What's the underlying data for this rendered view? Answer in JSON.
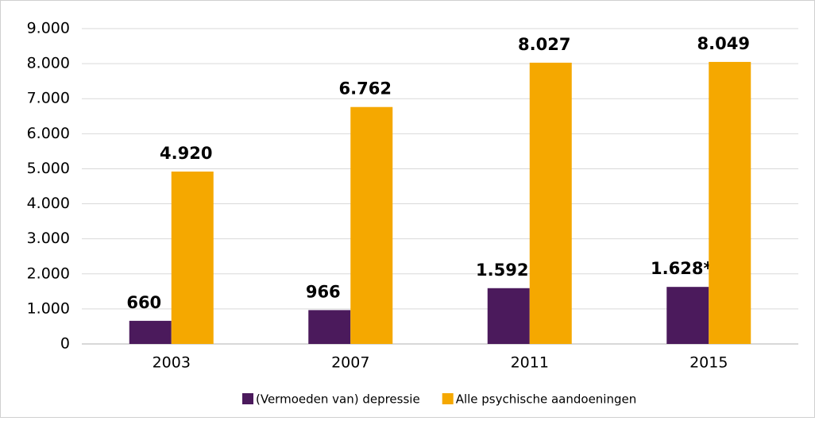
{
  "chart_data": {
    "type": "bar",
    "categories": [
      "2003",
      "2007",
      "2011",
      "2015"
    ],
    "series": [
      {
        "name": "(Vermoeden van) depressie",
        "color": "#4b1a5c",
        "values": [
          660,
          966,
          1592,
          1628
        ],
        "value_labels": [
          "660",
          "966",
          "1.592",
          "1.628*"
        ]
      },
      {
        "name": "Alle psychische aandoeningen",
        "color": "#f5a800",
        "values": [
          4920,
          6762,
          8027,
          8049
        ],
        "value_labels": [
          "4.920",
          "6.762",
          "8.027",
          "8.049"
        ]
      }
    ],
    "ylim": [
      0,
      9000
    ],
    "yticks": [
      0,
      {
        "value": 1000,
        "label": "1.000"
      },
      {
        "value": 2000,
        "label": "2.000"
      },
      {
        "value": 3000,
        "label": "3.000"
      },
      {
        "value": 4000,
        "label": "4.000"
      },
      {
        "value": 5000,
        "label": "5.000"
      },
      {
        "value": 6000,
        "label": "6.000"
      },
      {
        "value": 7000,
        "label": "7.000"
      },
      {
        "value": 8000,
        "label": "8.000"
      },
      {
        "value": 9000,
        "label": "9.000"
      }
    ],
    "grid": true,
    "legend": "bottom"
  }
}
